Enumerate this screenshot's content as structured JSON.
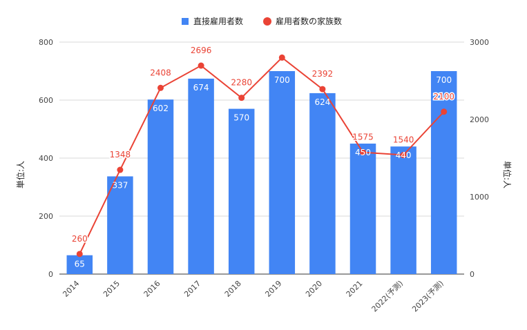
{
  "chart_data": {
    "type": "bar+line",
    "categories": [
      "2014",
      "2015",
      "2016",
      "2017",
      "2018",
      "2019",
      "2020",
      "2021",
      "2022(予測)",
      "2023(予測)"
    ],
    "series": [
      {
        "name": "直接雇用者数",
        "type": "bar",
        "axis": "left",
        "color": "#4285f4",
        "values": [
          65,
          337,
          602,
          674,
          570,
          700,
          624,
          450,
          440,
          700
        ]
      },
      {
        "name": "雇用者数の家族数",
        "type": "line",
        "axis": "right",
        "color": "#ea4335",
        "values": [
          260,
          1348,
          2408,
          2696,
          2280,
          2800,
          2392,
          1575,
          1540,
          2100
        ],
        "data_labels": [
          "260",
          "1348",
          "2408",
          "2696",
          "2280",
          "",
          "2392",
          "1575",
          "1540",
          "2100"
        ]
      }
    ],
    "y_left": {
      "label": "単位:人",
      "ylim": [
        0,
        800
      ],
      "ticks": [
        "0",
        "200",
        "400",
        "600",
        "800"
      ]
    },
    "y_right": {
      "label": "単位:人",
      "ylim": [
        0,
        3000
      ],
      "ticks": [
        "0",
        "1000",
        "2000",
        "3000"
      ]
    },
    "grid": true,
    "legend": "top-center"
  }
}
